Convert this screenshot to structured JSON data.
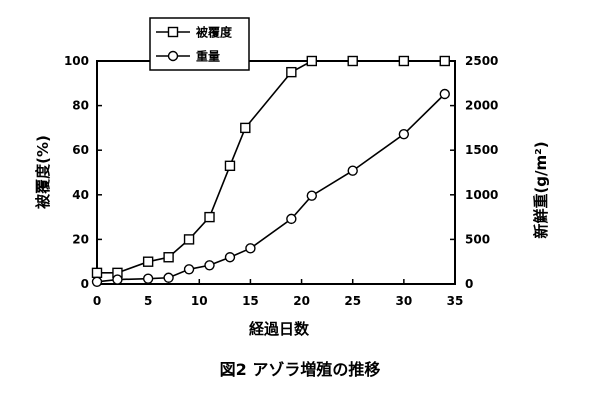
{
  "chart_data": {
    "type": "line",
    "caption": "図2 アゾラ増殖の推移",
    "xlabel": "経過日数",
    "ylabel_left": "被覆度(%)",
    "ylabel_right": "新鮮重(g/m²)",
    "xlim": [
      0,
      35
    ],
    "ylim_left": [
      0,
      100
    ],
    "ylim_right": [
      0,
      2500
    ],
    "x_ticks": [
      0,
      5,
      10,
      15,
      20,
      25,
      30,
      35
    ],
    "y_left_ticks": [
      0,
      20,
      40,
      60,
      80,
      100
    ],
    "y_right_ticks": [
      0,
      500,
      1000,
      1500,
      2000,
      2500
    ],
    "legend_position": "top-left",
    "grid": false,
    "series": [
      {
        "name": "被覆度",
        "axis": "left",
        "marker": "square",
        "x": [
          0,
          2,
          5,
          7,
          9,
          11,
          13,
          14.5,
          19,
          21,
          25,
          30,
          34
        ],
        "y": [
          5,
          5,
          10,
          12,
          20,
          30,
          53,
          70,
          95,
          100,
          100,
          100,
          100
        ]
      },
      {
        "name": "重量",
        "axis": "right",
        "marker": "circle",
        "x": [
          0,
          2,
          5,
          7,
          9,
          11,
          13,
          15,
          19,
          21,
          25,
          30,
          34
        ],
        "y": [
          25,
          50,
          60,
          70,
          165,
          210,
          300,
          400,
          730,
          990,
          1270,
          1680,
          2130
        ]
      }
    ]
  }
}
